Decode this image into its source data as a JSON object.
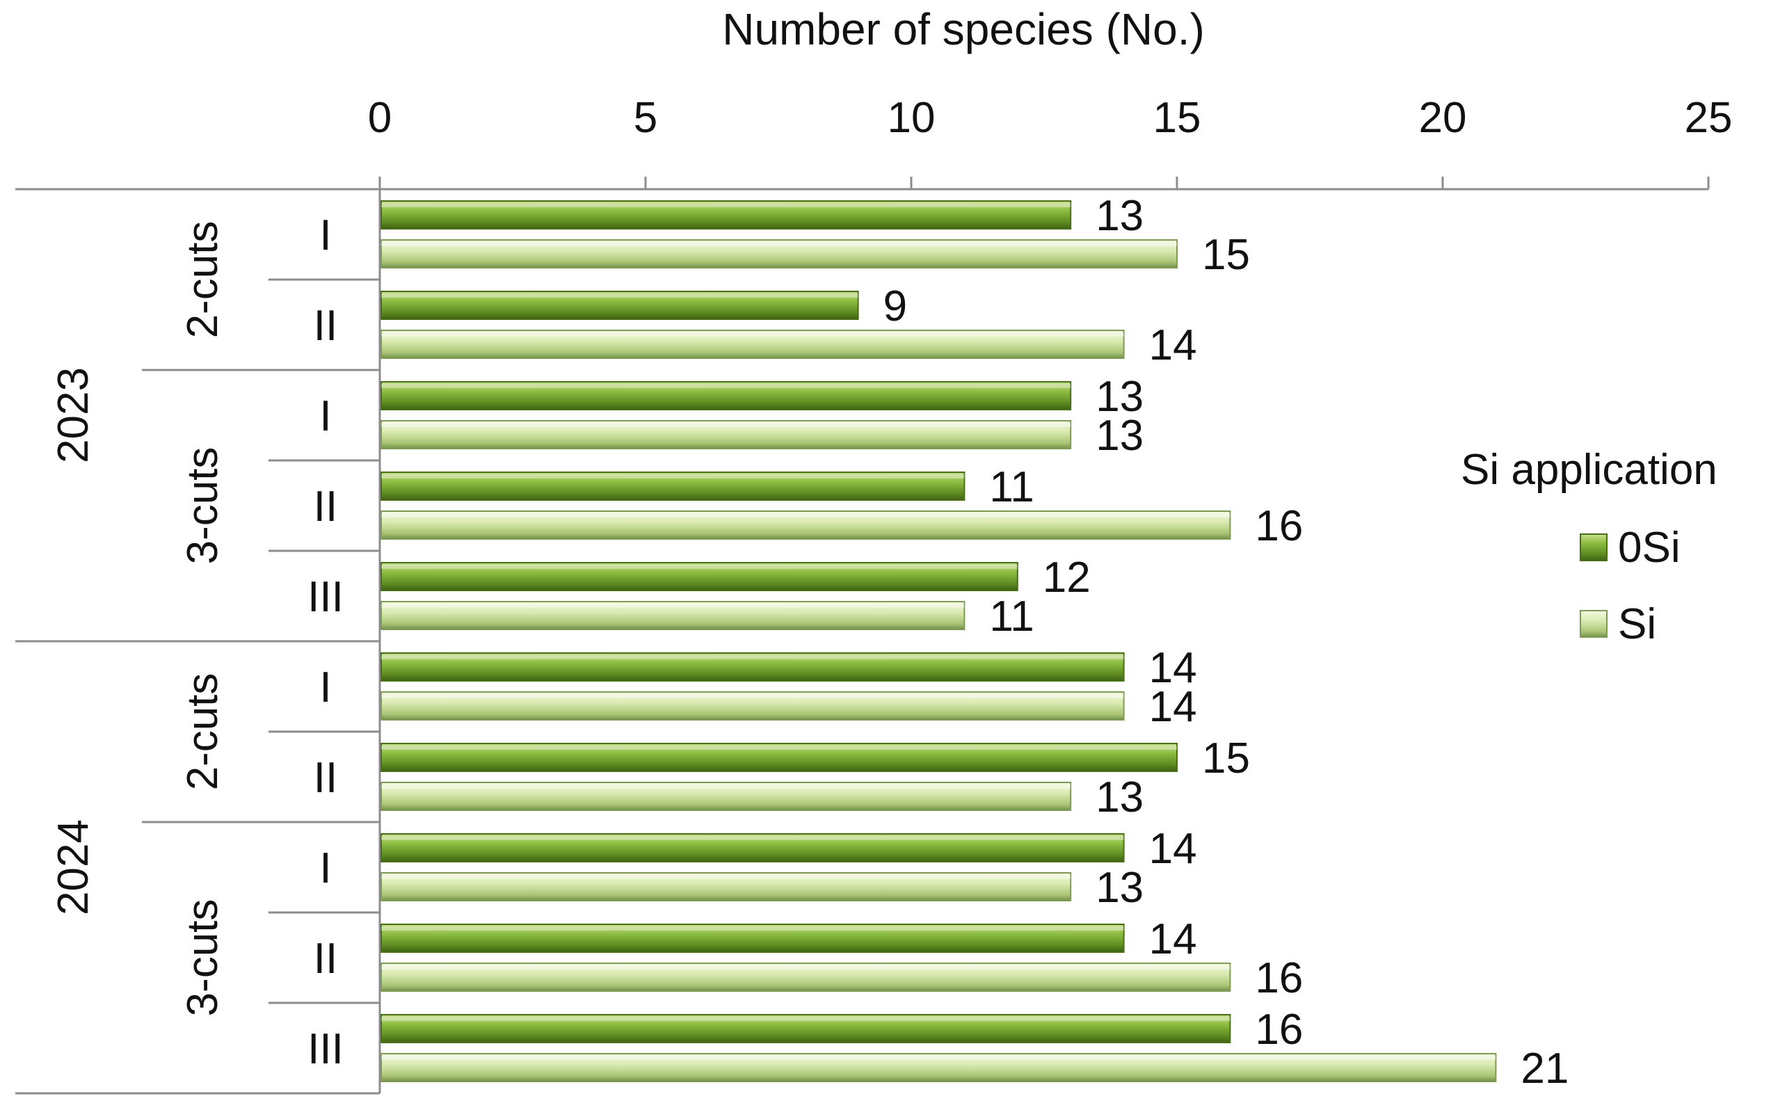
{
  "chart_data": {
    "type": "bar",
    "orientation": "horizontal",
    "title": "",
    "xlabel": "Number of species (No.)",
    "ylabel": "",
    "xlim": [
      0,
      25
    ],
    "x_ticks": [
      "0",
      "5",
      "10",
      "15",
      "20",
      "25"
    ],
    "grid": false,
    "legend_title": "Si application",
    "legend_position": "right",
    "year_labels": [
      "2023",
      "2024"
    ],
    "group_labels": [
      "2-cuts",
      "3-cuts",
      "2-cuts",
      "3-cuts"
    ],
    "categories": [
      "I",
      "II",
      "I",
      "II",
      "III",
      "I",
      "II",
      "I",
      "II",
      "III"
    ],
    "series": [
      {
        "name": "0Si",
        "color": "#6d9a2a",
        "values": [
          13,
          9,
          13,
          11,
          12,
          14,
          15,
          14,
          14,
          16
        ]
      },
      {
        "name": "Si",
        "color": "#c4dc8e",
        "values": [
          15,
          14,
          13,
          16,
          11,
          14,
          13,
          13,
          16,
          21
        ]
      }
    ]
  }
}
